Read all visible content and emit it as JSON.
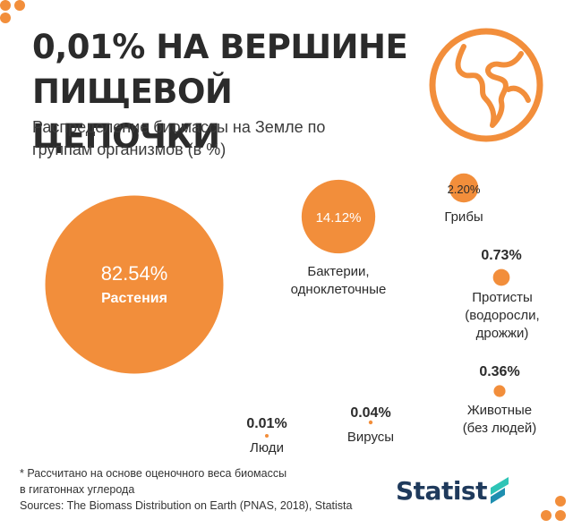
{
  "header": {
    "title_line1": "0,01% НА ВЕРШИНЕ",
    "title_line2": "ПИЩЕВОЙ ЦЕПОЧКИ",
    "subtitle_line1": "Распределение биомассы на Земле по",
    "subtitle_line2": "группам организмов (в %)"
  },
  "icons": {
    "globe": "globe-icon",
    "logo_mark": "statista-logo-icon"
  },
  "colors": {
    "accent": "#f28e3b",
    "text": "#2b2b2b",
    "logo": "#1f3a5c",
    "logo_accent": "#2ec4b6"
  },
  "chart_data": {
    "type": "bubble",
    "unit": "%",
    "items": [
      {
        "value": 82.54,
        "value_label": "82.54%",
        "name_lines": [
          "Растения"
        ]
      },
      {
        "value": 14.12,
        "value_label": "14.12%",
        "name_lines": [
          "Бактерии,",
          "одноклеточные"
        ]
      },
      {
        "value": 2.2,
        "value_label": "2.20%",
        "name_lines": [
          "Грибы"
        ]
      },
      {
        "value": 0.73,
        "value_label": "0.73%",
        "name_lines": [
          "Протисты",
          "(водоросли,",
          "дрожжи)"
        ]
      },
      {
        "value": 0.36,
        "value_label": "0.36%",
        "name_lines": [
          "Животные",
          "(без людей)"
        ]
      },
      {
        "value": 0.04,
        "value_label": "0.04%",
        "name_lines": [
          "Вирусы"
        ]
      },
      {
        "value": 0.01,
        "value_label": "0.01%",
        "name_lines": [
          "Люди"
        ]
      }
    ]
  },
  "footer": {
    "note_line1": "* Рассчитано на основе оценочного веса биомассы",
    "note_line2": "в гигатоннах углерода",
    "sources": "Sources: The Biomass Distribution on Earth (PNAS, 2018), Statista",
    "logo_text": "Statist"
  }
}
